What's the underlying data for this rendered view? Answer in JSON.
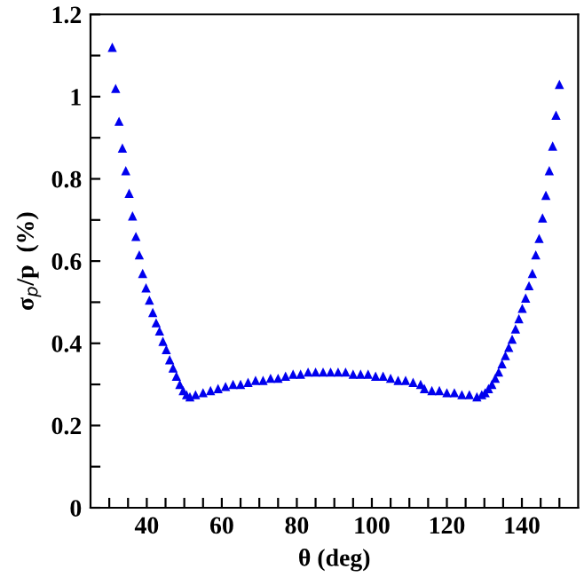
{
  "chart_data": {
    "type": "scatter",
    "xlabel": "θ (deg)",
    "ylabel": "σ$_{p}$/p  (%)",
    "marker": "triangle",
    "grid": false,
    "xlim": [
      25,
      155
    ],
    "ylim": [
      0,
      1.2
    ],
    "xticks": [
      {
        "value": 30,
        "label": null
      },
      {
        "value": 35,
        "label": null
      },
      40,
      {
        "value": 45,
        "label": null
      },
      {
        "value": 50,
        "label": null
      },
      {
        "value": 55,
        "label": null
      },
      60,
      {
        "value": 65,
        "label": null
      },
      {
        "value": 70,
        "label": null
      },
      {
        "value": 75,
        "label": null
      },
      80,
      {
        "value": 85,
        "label": null
      },
      {
        "value": 90,
        "label": null
      },
      {
        "value": 95,
        "label": null
      },
      100,
      {
        "value": 105,
        "label": null
      },
      {
        "value": 110,
        "label": null
      },
      {
        "value": 115,
        "label": null
      },
      120,
      {
        "value": 125,
        "label": null
      },
      {
        "value": 130,
        "label": null
      },
      {
        "value": 135,
        "label": null
      },
      140,
      {
        "value": 145,
        "label": null
      },
      {
        "value": 150,
        "label": null
      }
    ],
    "yticks": [
      0,
      {
        "value": 0.1,
        "label": null
      },
      0.2,
      {
        "value": 0.3,
        "label": null
      },
      0.4,
      {
        "value": 0.5,
        "label": null
      },
      0.6,
      {
        "value": 0.7,
        "label": null
      },
      0.8,
      {
        "value": 0.9,
        "label": null
      },
      1,
      {
        "value": 1.1,
        "label": null
      },
      1.2
    ],
    "series": [
      {
        "color": "#0000ee",
        "x": [
          30.8,
          31.7,
          32.6,
          33.5,
          34.4,
          35.3,
          36.2,
          37.1,
          38,
          38.9,
          39.8,
          40.7,
          41.6,
          42.5,
          43.4,
          44.3,
          45.2,
          46.1,
          47,
          47.9,
          48.8,
          49.7,
          50.6,
          51.5,
          53,
          55,
          57,
          59,
          61,
          63,
          65,
          67,
          69,
          71,
          73,
          75,
          77,
          79,
          81,
          83,
          85,
          87,
          89,
          91,
          93,
          95,
          97,
          99,
          101,
          103,
          105,
          107,
          109,
          111,
          113,
          114,
          116,
          118,
          120,
          122,
          124,
          126,
          128,
          129.3,
          130.2,
          131.1,
          132,
          132.9,
          133.8,
          134.7,
          135.6,
          136.5,
          137.4,
          138.3,
          139.2,
          140.1,
          141,
          141.9,
          142.8,
          143.7,
          144.6,
          145.5,
          146.4,
          147.3,
          148.2,
          149.1,
          150
        ],
        "values": [
          1.12,
          1.02,
          0.94,
          0.875,
          0.82,
          0.765,
          0.71,
          0.66,
          0.615,
          0.57,
          0.535,
          0.505,
          0.475,
          0.45,
          0.43,
          0.405,
          0.385,
          0.36,
          0.34,
          0.32,
          0.3,
          0.285,
          0.275,
          0.27,
          0.275,
          0.28,
          0.285,
          0.29,
          0.295,
          0.3,
          0.3,
          0.305,
          0.31,
          0.31,
          0.315,
          0.315,
          0.32,
          0.325,
          0.325,
          0.33,
          0.33,
          0.33,
          0.33,
          0.33,
          0.33,
          0.325,
          0.325,
          0.325,
          0.32,
          0.32,
          0.315,
          0.31,
          0.31,
          0.305,
          0.3,
          0.29,
          0.285,
          0.285,
          0.28,
          0.28,
          0.275,
          0.275,
          0.27,
          0.275,
          0.28,
          0.29,
          0.3,
          0.315,
          0.33,
          0.35,
          0.37,
          0.39,
          0.41,
          0.435,
          0.46,
          0.485,
          0.51,
          0.54,
          0.57,
          0.615,
          0.655,
          0.705,
          0.76,
          0.82,
          0.88,
          0.955,
          1.03
        ]
      }
    ]
  }
}
